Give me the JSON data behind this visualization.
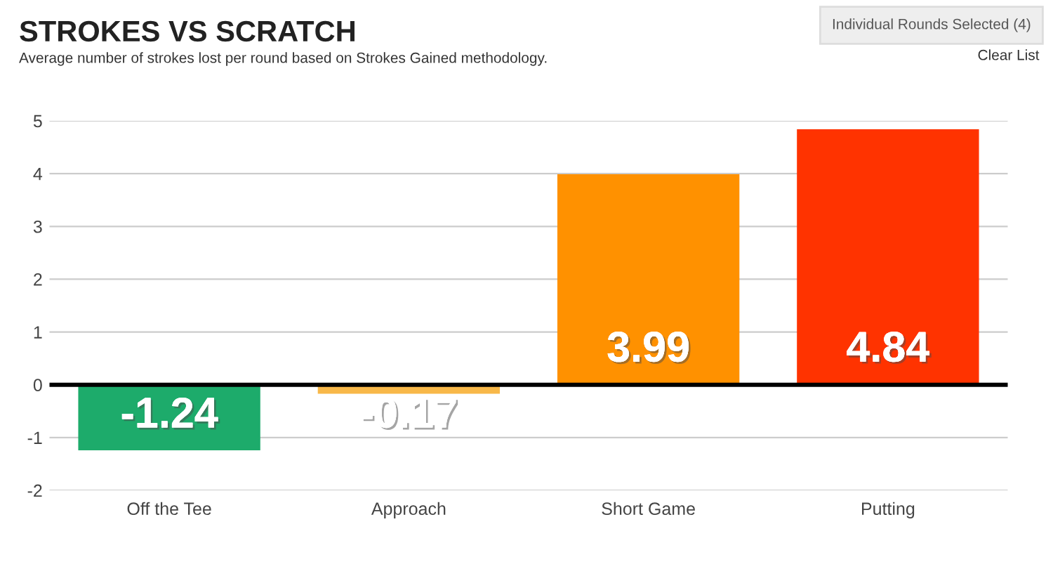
{
  "chart_data": {
    "type": "bar",
    "title": "STROKES VS SCRATCH",
    "subtitle": "Average number of strokes lost per round based on Strokes Gained methodology.",
    "annotations": [
      "Individual Rounds Selected (4)",
      "Clear List"
    ],
    "categories": [
      "Off the Tee",
      "Approach",
      "Short Game",
      "Putting"
    ],
    "values": [
      -1.24,
      -0.17,
      3.99,
      4.84
    ],
    "colors": [
      "#1dab6b",
      "#f8b849",
      "#ff9100",
      "#ff3300"
    ],
    "ylim": [
      -2,
      5
    ],
    "yticks": [
      -2,
      -1,
      0,
      1,
      2,
      3,
      4,
      5
    ],
    "grid": "y",
    "data_labels": true,
    "ref_lines": [
      {
        "axis": "y",
        "value": 0,
        "color": "#000000"
      }
    ]
  }
}
